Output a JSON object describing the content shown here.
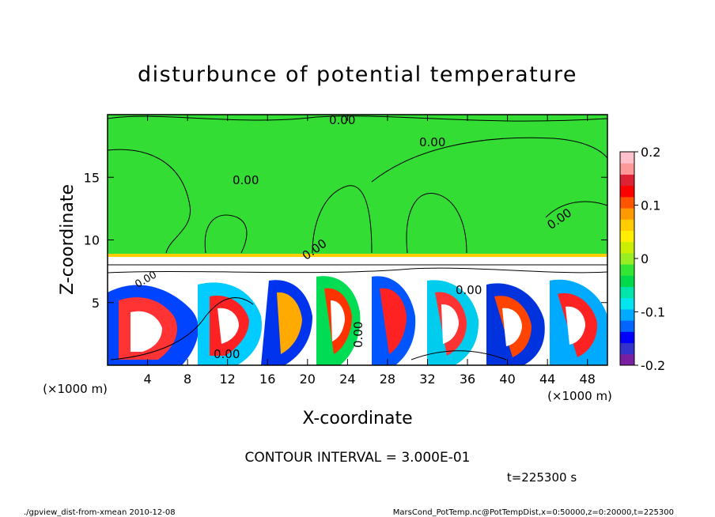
{
  "chart_data": {
    "type": "heatmap",
    "title": "disturbunce of potential temperature",
    "xlabel": "X-coordinate",
    "ylabel": "Z-coordinate",
    "x_unit": "(×1000 m)",
    "y_unit": "(×1000 m)",
    "xlim": [
      0,
      50
    ],
    "ylim": [
      0,
      20
    ],
    "x_ticks": [
      "4",
      "8",
      "12",
      "16",
      "20",
      "24",
      "28",
      "32",
      "36",
      "40",
      "44",
      "48"
    ],
    "x_tick_values": [
      4,
      8,
      12,
      16,
      20,
      24,
      28,
      32,
      36,
      40,
      44,
      48
    ],
    "y_ticks": [
      "5",
      "10",
      "15"
    ],
    "y_tick_values": [
      5,
      10,
      15
    ],
    "colorbar": {
      "min": -0.2,
      "max": 0.2,
      "tick_labels": [
        "0.2",
        "0.1",
        "0",
        "-0.1",
        "-0.2"
      ],
      "tick_values": [
        0.2,
        0.1,
        0,
        -0.1,
        -0.2
      ],
      "colors": [
        "#7b1fa2",
        "#3333cc",
        "#0000ff",
        "#0066ff",
        "#00aaff",
        "#00e5ee",
        "#00e5aa",
        "#00d94a",
        "#33e633",
        "#99ee22",
        "#ccee00",
        "#ffee00",
        "#ffcc00",
        "#ff9900",
        "#ff5500",
        "#ff0000",
        "#dd2233",
        "#ff9999",
        "#ffc0cb"
      ]
    },
    "contour_labels": [
      "0.00",
      "0.00",
      "0.00",
      "0.00",
      "0.00",
      "0.00",
      "0.00",
      "0.00",
      "0.00"
    ],
    "contour_interval_text": "CONTOUR INTERVAL = 3.000E-01",
    "time_text": "t=225300 s",
    "footer_left": "./gpview_dist-from-xmean  2010-12-08",
    "footer_right": "MarsCond_PotTemp.nc@PotTempDist,x=0:50000,z=0:20000,t=225300"
  }
}
